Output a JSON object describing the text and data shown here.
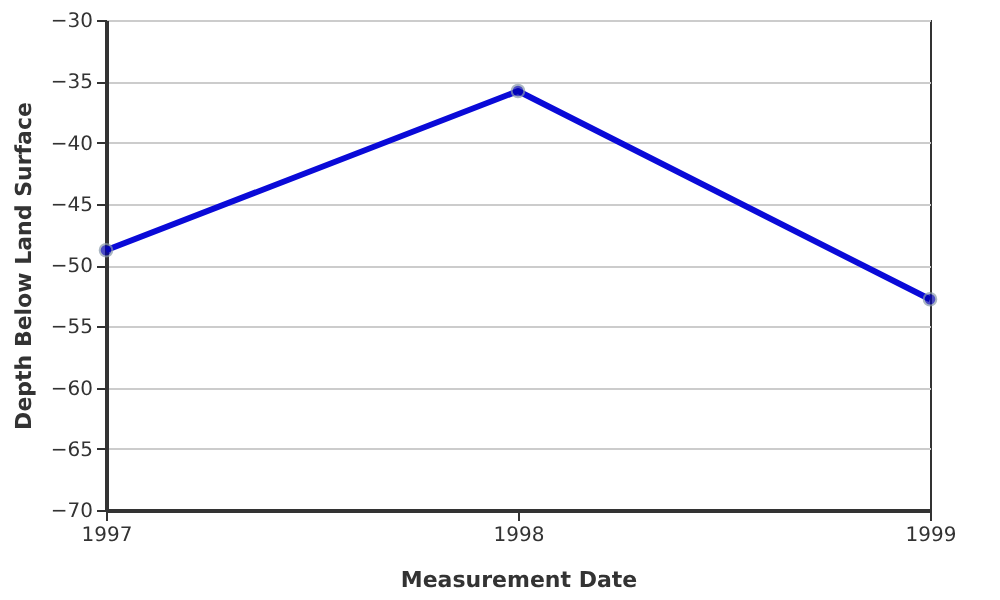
{
  "chart_data": {
    "type": "line",
    "xlabel": "Measurement Date",
    "ylabel": "Depth Below Land Surface",
    "x": [
      1997,
      1998,
      1999
    ],
    "series": [
      {
        "color": "#0a0ad8",
        "values": [
          -48.8,
          -35.8,
          -52.8
        ]
      }
    ],
    "xlim": [
      1997,
      1999
    ],
    "xticks": [
      1997,
      1998,
      1999
    ],
    "ylim": [
      -70,
      -30
    ],
    "yticks": [
      -70,
      -65,
      -60,
      -55,
      -50,
      -45,
      -40,
      -35,
      -30
    ],
    "grid": "y",
    "marker": "circle",
    "line_style": "solid"
  }
}
